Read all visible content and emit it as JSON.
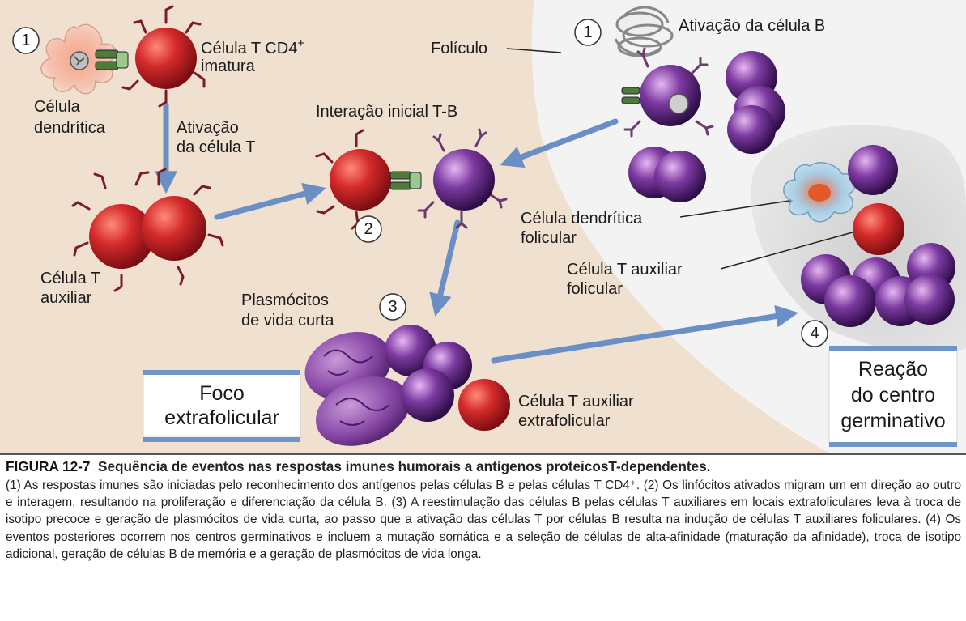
{
  "colors": {
    "paracortex": "#f0e0d0",
    "follicle": "#f2f2f2",
    "germinal_center": "#d9d9d9",
    "arrow": "#6a8fc4",
    "t_cell": "#c8202a",
    "b_cell": "#6a2a8c",
    "plasma_cell": "#8a4aa8",
    "box_accent": "#6e94c8"
  },
  "labels": {
    "dendritic_cell": [
      "Célula",
      "dendrítica"
    ],
    "naive_cd4": [
      "Célula T CD4",
      "imatura"
    ],
    "cd4_superscript": "+",
    "t_activation": [
      "Ativação",
      "da célula T"
    ],
    "helper_t": [
      "Célula T",
      "auxiliar"
    ],
    "initial_interaction": "Interação inicial T-B",
    "follicle": "Folículo",
    "b_activation": "Ativação da célula B",
    "follicular_dendritic": [
      "Célula dendrítica",
      "folicular"
    ],
    "follicular_helper_t": [
      "Célula T auxiliar",
      "folicular"
    ],
    "short_lived_plasma": [
      "Plasmócitos",
      "de vida curta"
    ],
    "extrafollicular_helper_t": [
      "Célula T auxiliar",
      "extrafolicular"
    ]
  },
  "steps": {
    "one_left": "1",
    "one_right": "1",
    "two": "2",
    "three": "3",
    "four": "4"
  },
  "boxes": {
    "extrafollicular_focus": [
      "Foco",
      "extrafolicular"
    ],
    "germinal_center_reaction": [
      "Reação",
      "do centro",
      "germinativo"
    ]
  },
  "caption": {
    "figure_number": "FIGURA 12-7",
    "title": "Sequência de eventos nas respostas imunes humorais a antígenos proteicosT-dependentes.",
    "body": "(1) As respostas imunes são iniciadas pelo reconhecimento dos antígenos pelas células B e pelas células T CD4⁺. (2) Os linfócitos ativados migram um em direção ao outro e interagem, resultando na proliferação e diferenciação da célula B. (3) A reestimulação das células B pelas células T auxiliares em locais extrafoliculares leva à troca de isotipo precoce e geração de plasmócitos de vida curta, ao passo que a ativação das células T por células B resulta na indução de células T auxiliares foliculares. (4) Os eventos posteriores ocorrem nos centros germinativos e incluem a mutação somática e a seleção de células de alta-afinidade (maturação da afinidade), troca de isotipo adicional, geração de células B de memória e a geração de plasmócitos de vida longa."
  }
}
